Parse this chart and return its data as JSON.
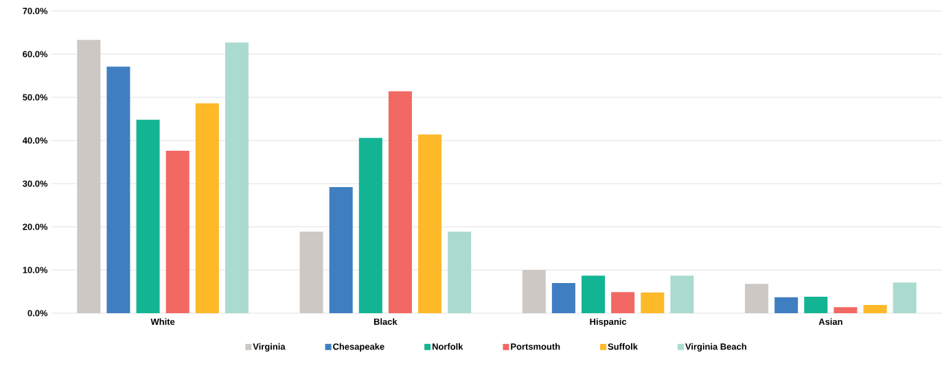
{
  "chart_data": {
    "type": "bar",
    "categories": [
      "White",
      "Black",
      "Hispanic",
      "Asian"
    ],
    "series": [
      {
        "name": "Virginia",
        "color": "#cdc8c4",
        "values": [
          63.3,
          18.9,
          10.0,
          6.8
        ]
      },
      {
        "name": "Chesapeake",
        "color": "#3f7fc1",
        "values": [
          57.1,
          29.2,
          7.0,
          3.7
        ]
      },
      {
        "name": "Norfolk",
        "color": "#13b494",
        "values": [
          44.8,
          40.6,
          8.7,
          3.8
        ]
      },
      {
        "name": "Portsmouth",
        "color": "#f26862",
        "values": [
          37.6,
          51.4,
          4.9,
          1.4
        ]
      },
      {
        "name": "Suffolk",
        "color": "#fdb927",
        "values": [
          48.6,
          41.4,
          4.8,
          1.9
        ]
      },
      {
        "name": "Virginia Beach",
        "color": "#abdbd0",
        "values": [
          62.7,
          18.9,
          8.7,
          7.1
        ]
      }
    ],
    "ylim": [
      0,
      70
    ],
    "yticks": [
      {
        "value": 0,
        "label": "0.0%"
      },
      {
        "value": 10,
        "label": "10.0%"
      },
      {
        "value": 20,
        "label": "20.0%"
      },
      {
        "value": 30,
        "label": "30.0%"
      },
      {
        "value": 40,
        "label": "40.0%"
      },
      {
        "value": 50,
        "label": "50.0%"
      },
      {
        "value": 60,
        "label": "60.0%"
      },
      {
        "value": 70,
        "label": "70.0%"
      }
    ],
    "grid": "y",
    "legend": "bottom"
  }
}
